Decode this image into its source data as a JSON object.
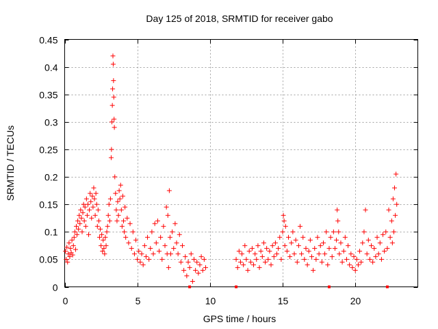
{
  "chart_data": {
    "type": "scatter",
    "title": "Day 125 of 2018, SRMTID for receiver gabo",
    "xlabel": "GPS time / hours",
    "ylabel": "SRMTID / TECUs",
    "xlim": [
      0,
      24.3
    ],
    "ylim": [
      0,
      0.45
    ],
    "xticks": [
      0,
      5,
      10,
      15,
      20
    ],
    "xtick_labels": [
      "0",
      "5",
      "10",
      "15",
      "20"
    ],
    "yticks": [
      0,
      0.05,
      0.1,
      0.15,
      0.2,
      0.25,
      0.3,
      0.35,
      0.4,
      0.45
    ],
    "ytick_labels": [
      "0",
      "0.05",
      "0.1",
      "0.15",
      "0.2",
      "0.25",
      "0.3",
      "0.35",
      "0.4",
      "0.45"
    ],
    "grid": true,
    "marker": "+",
    "color": "#ff0000",
    "series": [
      {
        "name": "SRMTID",
        "points": [
          [
            0.05,
            0.065
          ],
          [
            0.1,
            0.05
          ],
          [
            0.15,
            0.072
          ],
          [
            0.2,
            0.045
          ],
          [
            0.25,
            0.06
          ],
          [
            0.3,
            0.08
          ],
          [
            0.35,
            0.055
          ],
          [
            0.4,
            0.07
          ],
          [
            0.45,
            0.062
          ],
          [
            0.5,
            0.085
          ],
          [
            0.55,
            0.058
          ],
          [
            0.6,
            0.075
          ],
          [
            0.65,
            0.09
          ],
          [
            0.7,
            0.1
          ],
          [
            0.75,
            0.068
          ],
          [
            0.8,
            0.11
          ],
          [
            0.85,
            0.095
          ],
          [
            0.9,
            0.12
          ],
          [
            0.95,
            0.105
          ],
          [
            1.0,
            0.13
          ],
          [
            1.05,
            0.115
          ],
          [
            1.1,
            0.14
          ],
          [
            1.15,
            0.125
          ],
          [
            1.2,
            0.1
          ],
          [
            1.25,
            0.135
          ],
          [
            1.3,
            0.15
          ],
          [
            1.35,
            0.12
          ],
          [
            1.4,
            0.145
          ],
          [
            1.45,
            0.11
          ],
          [
            1.5,
            0.16
          ],
          [
            1.55,
            0.13
          ],
          [
            1.6,
            0.15
          ],
          [
            1.65,
            0.095
          ],
          [
            1.7,
            0.14
          ],
          [
            1.75,
            0.17
          ],
          [
            1.8,
            0.155
          ],
          [
            1.85,
            0.125
          ],
          [
            1.9,
            0.165
          ],
          [
            1.95,
            0.145
          ],
          [
            2.0,
            0.18
          ],
          [
            2.05,
            0.16
          ],
          [
            2.1,
            0.13
          ],
          [
            2.15,
            0.17
          ],
          [
            2.2,
            0.15
          ],
          [
            2.25,
            0.11
          ],
          [
            2.3,
            0.14
          ],
          [
            2.35,
            0.12
          ],
          [
            2.4,
            0.09
          ],
          [
            2.45,
            0.105
          ],
          [
            2.5,
            0.075
          ],
          [
            2.55,
            0.095
          ],
          [
            2.6,
            0.065
          ],
          [
            2.65,
            0.085
          ],
          [
            2.7,
            0.07
          ],
          [
            2.75,
            0.06
          ],
          [
            2.8,
            0.09
          ],
          [
            2.85,
            0.075
          ],
          [
            2.9,
            0.1
          ],
          [
            2.95,
            0.11
          ],
          [
            3.0,
            0.13
          ],
          [
            3.05,
            0.15
          ],
          [
            3.1,
            0.12
          ],
          [
            3.15,
            0.16
          ],
          [
            3.2,
            0.235
          ],
          [
            3.22,
            0.25
          ],
          [
            3.25,
            0.3
          ],
          [
            3.28,
            0.33
          ],
          [
            3.3,
            0.36
          ],
          [
            3.32,
            0.42
          ],
          [
            3.34,
            0.405
          ],
          [
            3.36,
            0.375
          ],
          [
            3.38,
            0.345
          ],
          [
            3.4,
            0.305
          ],
          [
            3.42,
            0.29
          ],
          [
            3.45,
            0.2
          ],
          [
            3.5,
            0.17
          ],
          [
            3.55,
            0.14
          ],
          [
            3.6,
            0.12
          ],
          [
            3.65,
            0.155
          ],
          [
            3.7,
            0.13
          ],
          [
            3.75,
            0.175
          ],
          [
            3.8,
            0.16
          ],
          [
            3.85,
            0.185
          ],
          [
            3.9,
            0.14
          ],
          [
            3.95,
            0.11
          ],
          [
            4.0,
            0.165
          ],
          [
            4.05,
            0.12
          ],
          [
            4.1,
            0.1
          ],
          [
            4.15,
            0.145
          ],
          [
            4.2,
            0.09
          ],
          [
            4.3,
            0.125
          ],
          [
            4.4,
            0.08
          ],
          [
            4.5,
            0.115
          ],
          [
            4.6,
            0.07
          ],
          [
            4.7,
            0.1
          ],
          [
            4.8,
            0.06
          ],
          [
            4.9,
            0.085
          ],
          [
            5.0,
            0.05
          ],
          [
            5.1,
            0.065
          ],
          [
            5.2,
            0.045
          ],
          [
            5.3,
            0.06
          ],
          [
            5.4,
            0.04
          ],
          [
            5.5,
            0.075
          ],
          [
            5.6,
            0.055
          ],
          [
            5.7,
            0.09
          ],
          [
            5.8,
            0.05
          ],
          [
            5.9,
            0.07
          ],
          [
            6.0,
            0.1
          ],
          [
            6.1,
            0.06
          ],
          [
            6.2,
            0.115
          ],
          [
            6.3,
            0.08
          ],
          [
            6.4,
            0.12
          ],
          [
            6.5,
            0.065
          ],
          [
            6.6,
            0.09
          ],
          [
            6.7,
            0.05
          ],
          [
            6.8,
            0.11
          ],
          [
            6.9,
            0.075
          ],
          [
            7.0,
            0.145
          ],
          [
            7.05,
            0.06
          ],
          [
            7.1,
            0.13
          ],
          [
            7.15,
            0.035
          ],
          [
            7.2,
            0.175
          ],
          [
            7.25,
            0.09
          ],
          [
            7.3,
            0.06
          ],
          [
            7.4,
            0.1
          ],
          [
            7.5,
            0.07
          ],
          [
            7.6,
            0.115
          ],
          [
            7.7,
            0.08
          ],
          [
            7.8,
            0.06
          ],
          [
            7.9,
            0.095
          ],
          [
            8.0,
            0.045
          ],
          [
            8.1,
            0.075
          ],
          [
            8.2,
            0.03
          ],
          [
            8.3,
            0.055
          ],
          [
            8.4,
            0.02
          ],
          [
            8.5,
            0.045
          ],
          [
            8.6,
            0.035
          ],
          [
            8.7,
            0.06
          ],
          [
            8.8,
            0.01
          ],
          [
            8.9,
            0.05
          ],
          [
            9.0,
            0.03
          ],
          [
            9.1,
            0.045
          ],
          [
            9.2,
            0.025
          ],
          [
            9.3,
            0.04
          ],
          [
            9.4,
            0.055
          ],
          [
            9.5,
            0.03
          ],
          [
            9.6,
            0.05
          ],
          [
            9.7,
            0.035
          ],
          [
            11.8,
            0.05
          ],
          [
            11.9,
            0.035
          ],
          [
            12.0,
            0.065
          ],
          [
            12.1,
            0.045
          ],
          [
            12.2,
            0.06
          ],
          [
            12.3,
            0.04
          ],
          [
            12.4,
            0.075
          ],
          [
            12.5,
            0.05
          ],
          [
            12.6,
            0.03
          ],
          [
            12.7,
            0.065
          ],
          [
            12.8,
            0.045
          ],
          [
            12.9,
            0.07
          ],
          [
            13.0,
            0.04
          ],
          [
            13.1,
            0.06
          ],
          [
            13.2,
            0.05
          ],
          [
            13.3,
            0.075
          ],
          [
            13.4,
            0.035
          ],
          [
            13.5,
            0.065
          ],
          [
            13.6,
            0.055
          ],
          [
            13.7,
            0.08
          ],
          [
            13.8,
            0.045
          ],
          [
            13.9,
            0.07
          ],
          [
            14.0,
            0.05
          ],
          [
            14.1,
            0.065
          ],
          [
            14.2,
            0.04
          ],
          [
            14.3,
            0.075
          ],
          [
            14.4,
            0.055
          ],
          [
            14.5,
            0.08
          ],
          [
            14.6,
            0.06
          ],
          [
            14.7,
            0.07
          ],
          [
            14.8,
            0.09
          ],
          [
            14.9,
            0.05
          ],
          [
            15.0,
            0.1
          ],
          [
            15.05,
            0.13
          ],
          [
            15.1,
            0.12
          ],
          [
            15.15,
            0.075
          ],
          [
            15.2,
            0.11
          ],
          [
            15.3,
            0.065
          ],
          [
            15.4,
            0.09
          ],
          [
            15.5,
            0.055
          ],
          [
            15.6,
            0.08
          ],
          [
            15.7,
            0.1
          ],
          [
            15.8,
            0.06
          ],
          [
            15.9,
            0.085
          ],
          [
            16.0,
            0.045
          ],
          [
            16.1,
            0.075
          ],
          [
            16.2,
            0.11
          ],
          [
            16.3,
            0.06
          ],
          [
            16.4,
            0.09
          ],
          [
            16.5,
            0.05
          ],
          [
            16.6,
            0.07
          ],
          [
            16.7,
            0.04
          ],
          [
            16.8,
            0.065
          ],
          [
            16.9,
            0.085
          ],
          [
            17.0,
            0.055
          ],
          [
            17.1,
            0.03
          ],
          [
            17.2,
            0.07
          ],
          [
            17.3,
            0.05
          ],
          [
            17.4,
            0.09
          ],
          [
            17.5,
            0.06
          ],
          [
            17.6,
            0.075
          ],
          [
            17.7,
            0.045
          ],
          [
            17.8,
            0.08
          ],
          [
            17.9,
            0.06
          ],
          [
            18.0,
            0.1
          ],
          [
            18.1,
            0.04
          ],
          [
            18.2,
            0.07
          ],
          [
            18.3,
            0.09
          ],
          [
            18.4,
            0.055
          ],
          [
            18.5,
            0.1
          ],
          [
            18.6,
            0.07
          ],
          [
            18.7,
            0.085
          ],
          [
            18.75,
            0.14
          ],
          [
            18.8,
            0.12
          ],
          [
            18.85,
            0.1
          ],
          [
            18.9,
            0.06
          ],
          [
            19.0,
            0.08
          ],
          [
            19.1,
            0.045
          ],
          [
            19.2,
            0.065
          ],
          [
            19.3,
            0.09
          ],
          [
            19.4,
            0.05
          ],
          [
            19.5,
            0.075
          ],
          [
            19.6,
            0.04
          ],
          [
            19.7,
            0.06
          ],
          [
            19.8,
            0.035
          ],
          [
            19.9,
            0.055
          ],
          [
            20.0,
            0.03
          ],
          [
            20.1,
            0.05
          ],
          [
            20.2,
            0.04
          ],
          [
            20.3,
            0.065
          ],
          [
            20.4,
            0.045
          ],
          [
            20.5,
            0.08
          ],
          [
            20.6,
            0.1
          ],
          [
            20.7,
            0.14
          ],
          [
            20.8,
            0.06
          ],
          [
            20.9,
            0.085
          ],
          [
            21.0,
            0.05
          ],
          [
            21.1,
            0.075
          ],
          [
            21.2,
            0.045
          ],
          [
            21.3,
            0.07
          ],
          [
            21.4,
            0.055
          ],
          [
            21.5,
            0.09
          ],
          [
            21.6,
            0.06
          ],
          [
            21.7,
            0.08
          ],
          [
            21.8,
            0.05
          ],
          [
            21.9,
            0.095
          ],
          [
            22.0,
            0.065
          ],
          [
            22.1,
            0.1
          ],
          [
            22.2,
            0.07
          ],
          [
            22.3,
            0.14
          ],
          [
            22.4,
            0.09
          ],
          [
            22.5,
            0.12
          ],
          [
            22.55,
            0.08
          ],
          [
            22.6,
            0.16
          ],
          [
            22.65,
            0.1
          ],
          [
            22.7,
            0.18
          ],
          [
            22.75,
            0.13
          ],
          [
            22.8,
            0.205
          ],
          [
            22.85,
            0.15
          ]
        ]
      }
    ],
    "bottom_markers": [
      8.6,
      11.8,
      18.2,
      22.2
    ]
  }
}
